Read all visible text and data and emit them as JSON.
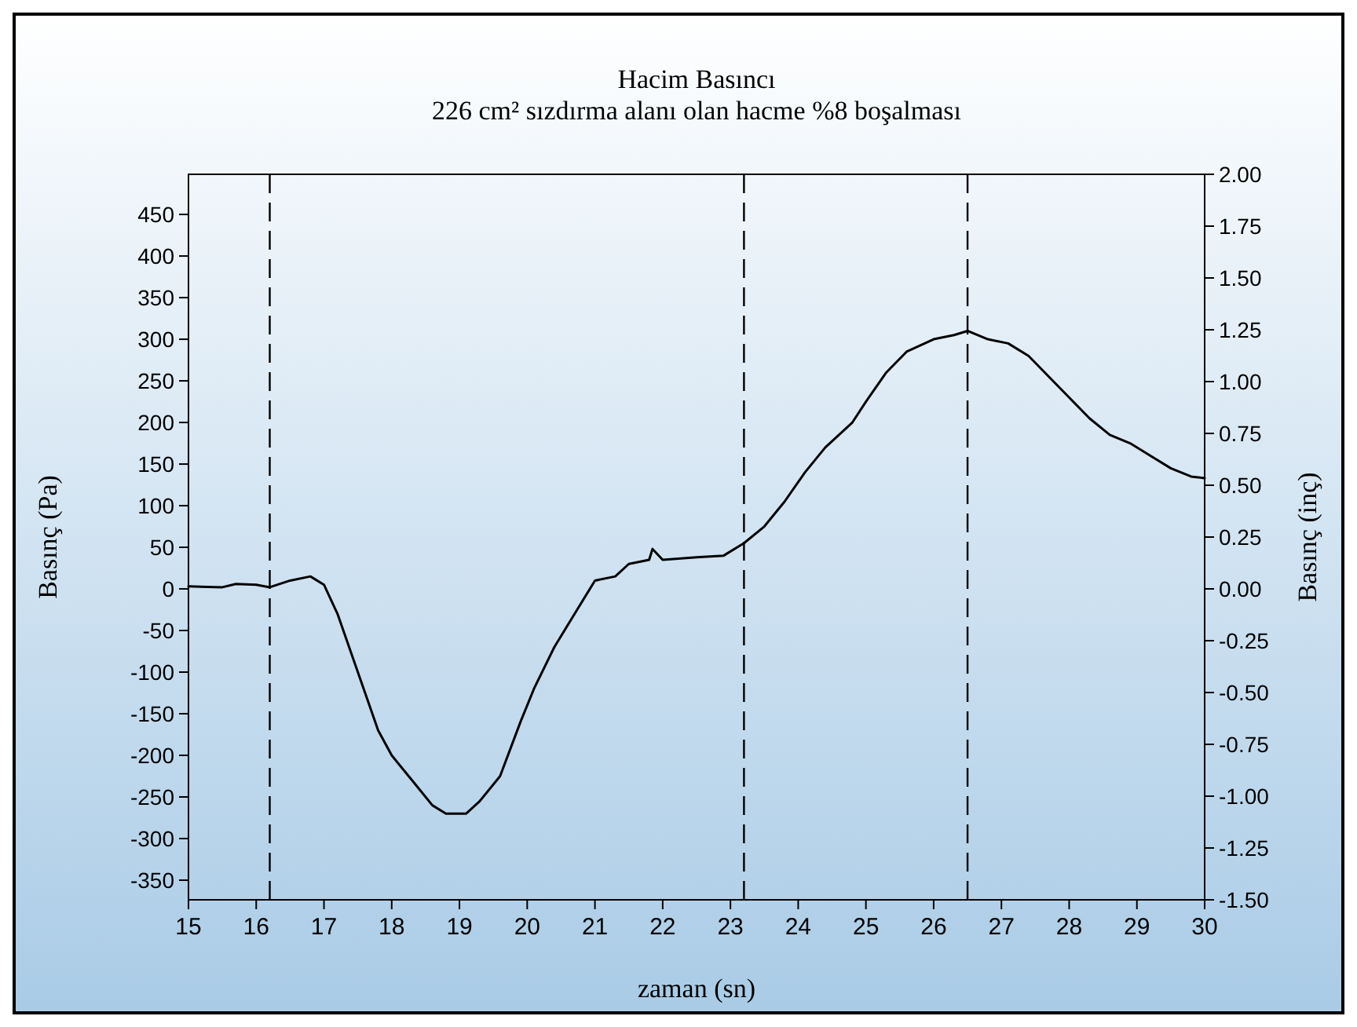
{
  "chart_data": {
    "type": "line",
    "title": "Hacim Basıncı",
    "subtitle": "226 cm² sızdırma alanı olan hacme %8 boşalması",
    "xlabel": "zaman (sn)",
    "ylabel": "Basınç (Pa)",
    "y2label": "Basınç (inç)",
    "xlim": [
      15,
      30
    ],
    "xticks": [
      15,
      16,
      17,
      18,
      19,
      20,
      21,
      22,
      23,
      24,
      25,
      26,
      27,
      28,
      29,
      30
    ],
    "ylim": [
      -373.6,
      498.2
    ],
    "yticks": [
      -350,
      -300,
      -250,
      -200,
      -150,
      -100,
      -50,
      0,
      50,
      100,
      150,
      200,
      250,
      300,
      350,
      400,
      450
    ],
    "y2lim": [
      -1.5,
      2
    ],
    "y2ticks": [
      {
        "value": -1.5,
        "label": "-1.50"
      },
      {
        "value": -1.25,
        "label": "-1.25"
      },
      {
        "value": -1,
        "label": "-1.00"
      },
      {
        "value": -0.75,
        "label": "-0.75"
      },
      {
        "value": -0.5,
        "label": "-0.50"
      },
      {
        "value": -0.25,
        "label": "-0.25"
      },
      {
        "value": 0,
        "label": "0.00"
      },
      {
        "value": 0.25,
        "label": "0.25"
      },
      {
        "value": 0.5,
        "label": "0.50"
      },
      {
        "value": 0.75,
        "label": "0.75"
      },
      {
        "value": 1,
        "label": "1.00"
      },
      {
        "value": 1.25,
        "label": "1.25"
      },
      {
        "value": 1.5,
        "label": "1.50"
      },
      {
        "value": 1.75,
        "label": "1.75"
      },
      {
        "value": 2,
        "label": "2.00"
      }
    ],
    "marker": "none",
    "line_style": "solid",
    "ref_lines": [
      {
        "axis": "x",
        "value": 16.2,
        "line_style": "dashed",
        "color": "#000000"
      },
      {
        "axis": "x",
        "value": 23.2,
        "line_style": "dashed",
        "color": "#000000"
      },
      {
        "axis": "x",
        "value": 26.5,
        "line_style": "dashed",
        "color": "#000000"
      }
    ],
    "series": [
      {
        "color": "#000000",
        "x": [
          15,
          15.5,
          15.7,
          16,
          16.2,
          16.5,
          16.8,
          17,
          17.2,
          17.5,
          17.8,
          18,
          18.3,
          18.6,
          18.8,
          19.1,
          19.3,
          19.6,
          19.9,
          20.1,
          20.4,
          20.7,
          21,
          21.3,
          21.5,
          21.8,
          21.85,
          22,
          22.5,
          22.9,
          23.2,
          23.5,
          23.8,
          24.1,
          24.4,
          24.8,
          25,
          25.3,
          25.6,
          26,
          26.3,
          26.5,
          26.8,
          27.1,
          27.4,
          27.7,
          28,
          28.3,
          28.6,
          28.9,
          29.2,
          29.5,
          29.8,
          30
        ],
        "values": [
          3,
          2,
          6,
          5,
          2,
          10,
          15,
          5,
          -30,
          -100,
          -170,
          -200,
          -230,
          -260,
          -270,
          -270,
          -255,
          -225,
          -160,
          -120,
          -70,
          -30,
          10,
          15,
          30,
          35,
          48,
          35,
          38,
          40,
          55,
          75,
          105,
          140,
          170,
          200,
          225,
          260,
          285,
          300,
          305,
          310,
          300,
          295,
          280,
          255,
          230,
          205,
          185,
          175,
          160,
          145,
          135,
          133
        ]
      }
    ]
  }
}
